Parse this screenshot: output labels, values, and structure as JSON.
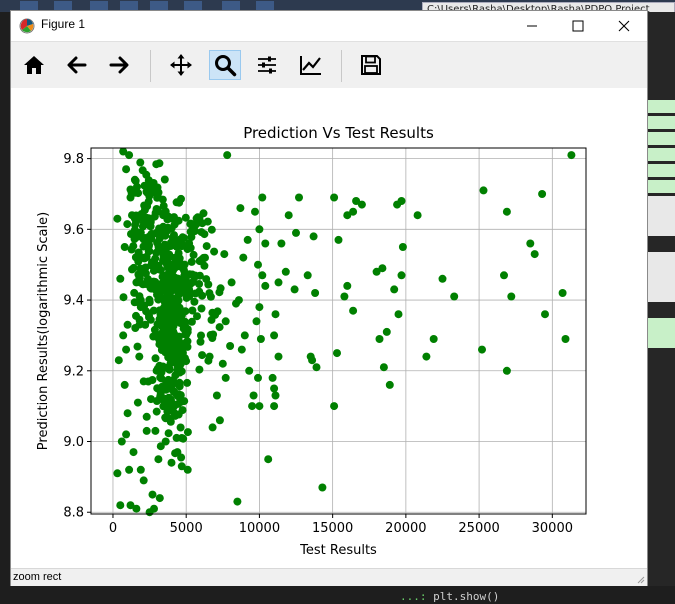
{
  "window": {
    "title": "Figure 1",
    "icon": "matplotlib-icon",
    "controls": [
      "minimize-icon",
      "maximize-icon",
      "close-icon"
    ]
  },
  "background": {
    "tab_text": "C:\\Users\\Rasha\\Desktop\\Rasha\\PDPO Project",
    "console_line": "plt.show()",
    "console_prompt": "...:"
  },
  "toolbar": {
    "buttons": [
      {
        "name": "home",
        "icon": "home-icon"
      },
      {
        "name": "back",
        "icon": "back-arrow-icon"
      },
      {
        "name": "forward",
        "icon": "forward-arrow-icon"
      },
      {
        "name": "pan",
        "icon": "pan-move-icon"
      },
      {
        "name": "zoom",
        "icon": "zoom-magnifier-icon",
        "active": true
      },
      {
        "name": "configure-subplots",
        "icon": "sliders-icon"
      },
      {
        "name": "edit-axis",
        "icon": "line-chart-icon"
      },
      {
        "name": "save",
        "icon": "save-disk-icon"
      }
    ]
  },
  "status": {
    "text": "zoom rect"
  },
  "chart_data": {
    "type": "scatter",
    "title": "Prediction Vs Test Results",
    "xlabel": "Test Results",
    "ylabel": "Prediction Results(logarithmic Scale)",
    "xlim": [
      -1500,
      32300
    ],
    "ylim": [
      8.795,
      9.83
    ],
    "xticks": [
      0,
      5000,
      10000,
      15000,
      20000,
      25000,
      30000
    ],
    "yticks": [
      8.8,
      9.0,
      9.2,
      9.4,
      9.6,
      9.8
    ],
    "xtick_labels": [
      "0",
      "5000",
      "10000",
      "15000",
      "20000",
      "25000",
      "30000"
    ],
    "ytick_labels": [
      "8.8",
      "9.0",
      "9.2",
      "9.4",
      "9.6",
      "9.8"
    ],
    "grid": true,
    "marker_color": "#008000",
    "series": [
      {
        "points": [
          [
            31300,
            9.81
          ],
          [
            25300,
            9.71
          ],
          [
            29300,
            9.7
          ],
          [
            26900,
            9.65
          ],
          [
            28500,
            9.56
          ],
          [
            28800,
            9.53
          ],
          [
            26700,
            9.47
          ],
          [
            27200,
            9.41
          ],
          [
            30700,
            9.42
          ],
          [
            29500,
            9.36
          ],
          [
            30900,
            9.29
          ],
          [
            25200,
            9.26
          ],
          [
            26900,
            9.2
          ],
          [
            22500,
            9.46
          ],
          [
            23300,
            9.41
          ],
          [
            21400,
            9.24
          ],
          [
            21900,
            9.29
          ],
          [
            20800,
            9.64
          ],
          [
            19400,
            9.67
          ],
          [
            19700,
            9.68
          ],
          [
            19800,
            9.55
          ],
          [
            19700,
            9.47
          ],
          [
            19500,
            9.36
          ],
          [
            18900,
            9.16
          ],
          [
            18500,
            9.21
          ],
          [
            18700,
            9.31
          ],
          [
            18200,
            9.29
          ],
          [
            18400,
            9.49
          ],
          [
            18000,
            9.48
          ],
          [
            19200,
            9.43
          ],
          [
            16400,
            9.37
          ],
          [
            17000,
            9.67
          ],
          [
            16600,
            9.68
          ],
          [
            16400,
            9.65
          ],
          [
            16000,
            9.64
          ],
          [
            15100,
            9.69
          ],
          [
            15400,
            9.57
          ],
          [
            15800,
            9.41
          ],
          [
            16000,
            9.44
          ],
          [
            15300,
            9.25
          ],
          [
            15100,
            9.1
          ],
          [
            14300,
            8.87
          ],
          [
            13900,
            9.21
          ],
          [
            13600,
            9.23
          ],
          [
            13500,
            9.24
          ],
          [
            13800,
            9.42
          ],
          [
            13300,
            9.47
          ],
          [
            13700,
            9.58
          ],
          [
            12700,
            9.69
          ],
          [
            12000,
            9.64
          ],
          [
            12500,
            9.59
          ],
          [
            12400,
            9.43
          ],
          [
            11800,
            9.48
          ],
          [
            11500,
            9.56
          ],
          [
            11300,
            9.45
          ],
          [
            11100,
            9.36
          ],
          [
            11000,
            9.3
          ],
          [
            11300,
            9.24
          ],
          [
            10900,
            9.18
          ],
          [
            11000,
            9.15
          ],
          [
            11100,
            9.13
          ],
          [
            11000,
            9.1
          ],
          [
            10600,
            8.95
          ],
          [
            10200,
            9.69
          ],
          [
            9700,
            9.65
          ],
          [
            10000,
            9.6
          ],
          [
            10400,
            9.56
          ],
          [
            9900,
            9.5
          ],
          [
            10200,
            9.47
          ],
          [
            10400,
            9.44
          ],
          [
            10000,
            9.38
          ],
          [
            9800,
            9.34
          ],
          [
            10100,
            9.29
          ],
          [
            9900,
            9.18
          ],
          [
            10000,
            9.1
          ],
          [
            9600,
            9.13
          ],
          [
            9500,
            9.1
          ],
          [
            8700,
            9.66
          ],
          [
            9200,
            9.57
          ],
          [
            8900,
            9.52
          ],
          [
            8600,
            9.4
          ],
          [
            8400,
            9.39
          ],
          [
            9000,
            9.3
          ],
          [
            8800,
            9.26
          ],
          [
            9300,
            9.2
          ],
          [
            8500,
            8.83
          ],
          [
            7800,
            9.81
          ],
          [
            7600,
            9.53
          ],
          [
            8100,
            9.45
          ],
          [
            7700,
            9.34
          ],
          [
            8000,
            9.27
          ],
          [
            7500,
            9.22
          ],
          [
            7700,
            9.18
          ],
          [
            7100,
            9.13
          ],
          [
            7300,
            9.06
          ],
          [
            6800,
            9.04
          ],
          [
            5100,
            8.92
          ],
          [
            4700,
            9.01
          ],
          [
            1100,
            8.92
          ],
          [
            300,
            8.91
          ],
          [
            500,
            8.82
          ],
          [
            1200,
            8.82
          ],
          [
            1600,
            8.81
          ],
          [
            2500,
            8.8
          ],
          [
            2800,
            8.81
          ],
          [
            2100,
            8.89
          ],
          [
            2700,
            8.85
          ],
          [
            3200,
            8.84
          ],
          [
            4700,
            8.93
          ],
          [
            4000,
            8.94
          ],
          [
            4400,
            8.97
          ],
          [
            3600,
            9.0
          ],
          [
            3100,
            8.95
          ],
          [
            2900,
            9.03
          ],
          [
            2300,
            9.03
          ],
          [
            1900,
            8.92
          ],
          [
            1400,
            8.97
          ],
          [
            900,
            9.02
          ],
          [
            600,
            9.0
          ],
          [
            1000,
            9.08
          ],
          [
            1700,
            9.11
          ],
          [
            800,
            9.16
          ],
          [
            400,
            9.23
          ],
          [
            900,
            9.26
          ],
          [
            700,
            9.3
          ],
          [
            1000,
            9.33
          ],
          [
            500,
            9.46
          ],
          [
            800,
            9.55
          ],
          [
            300,
            9.63
          ],
          [
            1200,
            9.69
          ],
          [
            900,
            9.77
          ],
          [
            700,
            9.82
          ],
          [
            1100,
            9.81
          ],
          [
            1500,
            9.74
          ],
          [
            1300,
            9.64
          ],
          [
            1700,
            9.59
          ],
          [
            2000,
            9.52
          ],
          [
            1600,
            9.45
          ],
          [
            1900,
            9.4
          ],
          [
            2200,
            9.33
          ],
          [
            1800,
            9.24
          ],
          [
            2100,
            9.17
          ],
          [
            2600,
            9.12
          ],
          [
            2300,
            9.07
          ]
        ],
        "clusters": [
          {
            "x_center": 3900,
            "x_spread": 950,
            "y_center": 9.32,
            "y_spread": 0.24,
            "count": 320
          },
          {
            "x_center": 2400,
            "x_spread": 1200,
            "y_center": 9.55,
            "y_spread": 0.2,
            "count": 150
          },
          {
            "x_center": 5600,
            "x_spread": 1300,
            "y_center": 9.45,
            "y_spread": 0.22,
            "count": 110
          }
        ]
      }
    ]
  }
}
